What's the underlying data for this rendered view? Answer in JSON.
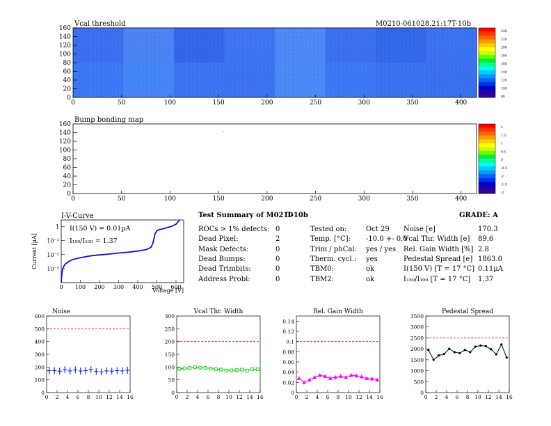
{
  "header": {
    "map1_title": "Vcal threshold",
    "module_id": "M0210-061028.21:17T-10b",
    "map2_title": "Bump bonding map"
  },
  "colors": {
    "blue_curve": "#1010e0",
    "red_ref": "#ff0000",
    "noise": "#0000ff",
    "vcal": "#00cc00",
    "relgain": "#ff00ff",
    "pedestal": "#000000"
  },
  "chart_data": [
    {
      "type": "heatmap",
      "name": "vcal-threshold-map",
      "title": "Vcal threshold",
      "xlim": [
        0,
        416
      ],
      "ylim": [
        0,
        160
      ],
      "xticks": [
        0,
        50,
        100,
        150,
        200,
        250,
        300,
        350,
        400
      ],
      "yticks": [
        0,
        20,
        40,
        60,
        80,
        100,
        120,
        140,
        160
      ],
      "roc_grid": {
        "cols": 8,
        "rows": 2
      },
      "roc_shades_top": [
        "#3a70f0",
        "#4a84f4",
        "#3266ea",
        "#3c74f2",
        "#4c88f6",
        "#3a70ee",
        "#3168e8",
        "#3a72f0"
      ],
      "roc_shades_bottom": [
        "#3a78f4",
        "#4486f6",
        "#3a74f0",
        "#3a72f0",
        "#4a8af6",
        "#3c78f2",
        "#3a72ee",
        "#3870ee"
      ],
      "palette_labels": [
        "240",
        "220",
        "200",
        "180",
        "160",
        "140",
        "120",
        "100",
        "80"
      ]
    },
    {
      "type": "heatmap",
      "name": "bump-bonding-map",
      "title": "Bump bonding map",
      "xlim": [
        0,
        416
      ],
      "ylim": [
        0,
        160
      ],
      "xticks": [
        0,
        50,
        100,
        150,
        200,
        250,
        300,
        350,
        400
      ],
      "yticks": [
        0,
        20,
        40,
        60,
        80,
        100,
        120,
        140,
        160
      ],
      "palette_labels": [
        "2",
        "1.5",
        "1",
        "0.5",
        "0",
        "-0.5",
        "-1",
        "-1.5",
        "-2"
      ]
    },
    {
      "type": "line",
      "name": "iv-curve",
      "title": "I-V-Curve",
      "xlabel": "Voltage [V]",
      "ylabel": "Current [µA]",
      "xlim": [
        0,
        640
      ],
      "ylim_log": [
        0.0001,
        3
      ],
      "xticks": [
        0,
        100,
        200,
        300,
        400,
        500,
        600
      ],
      "yticks": [
        {
          "value": 1,
          "label": "1"
        },
        {
          "value": 0.1,
          "label": "10⁻¹"
        },
        {
          "value": 0.01,
          "label": "10⁻²"
        },
        {
          "value": 0.001,
          "label": "10⁻³"
        }
      ],
      "annotations": [
        "I(150 V) = 0.01µA",
        "I₁₅₀/I₁₀₀ = 1.37"
      ],
      "x": [
        0,
        2,
        5,
        10,
        20,
        40,
        60,
        100,
        150,
        200,
        250,
        300,
        350,
        400,
        420,
        440,
        450,
        460,
        470,
        480,
        490,
        500,
        510,
        520,
        530,
        540,
        560,
        580,
        600,
        610,
        620
      ],
      "y": [
        0.0001,
        0.00025,
        0.0006,
        0.0012,
        0.002,
        0.0032,
        0.0045,
        0.006,
        0.008,
        0.0095,
        0.011,
        0.013,
        0.015,
        0.018,
        0.02,
        0.022,
        0.025,
        0.028,
        0.035,
        0.07,
        0.3,
        0.5,
        0.6,
        0.65,
        0.7,
        0.75,
        0.9,
        1.1,
        1.5,
        2.2,
        3
      ]
    },
    {
      "type": "scatter",
      "name": "noise-plot",
      "title": "Noise",
      "xlim": [
        0,
        16
      ],
      "ylim": [
        0,
        600
      ],
      "xticks": [
        0,
        2,
        4,
        6,
        8,
        10,
        12,
        14,
        16
      ],
      "yticks": [
        0,
        100,
        200,
        300,
        400,
        500,
        600
      ],
      "ref_line": 500,
      "x": [
        0,
        1,
        2,
        3,
        4,
        5,
        6,
        7,
        8,
        9,
        10,
        11,
        12,
        13,
        14,
        15
      ],
      "y": [
        171,
        172,
        168,
        179,
        170,
        178,
        169,
        172,
        180,
        165,
        162,
        170,
        168,
        172,
        170,
        175
      ]
    },
    {
      "type": "line",
      "name": "vcal-width-plot",
      "title": "Vcal Thr. Width",
      "xlim": [
        0,
        16
      ],
      "ylim": [
        0,
        300
      ],
      "xticks": [
        0,
        2,
        4,
        6,
        8,
        10,
        12,
        14,
        16
      ],
      "yticks": [
        0,
        50,
        100,
        150,
        200,
        250,
        300
      ],
      "ref_line": 200,
      "x": [
        0,
        1,
        2,
        3,
        4,
        5,
        6,
        7,
        8,
        9,
        10,
        11,
        12,
        13,
        14,
        15
      ],
      "y": [
        93,
        95,
        96,
        100,
        98,
        97,
        94,
        92,
        90,
        86,
        87,
        88,
        90,
        85,
        92,
        91
      ]
    },
    {
      "type": "line",
      "name": "relgain-plot",
      "title": "Rel. Gain Width",
      "xlim": [
        0,
        16
      ],
      "ylim": [
        0,
        0.15
      ],
      "xticks": [
        0,
        2,
        4,
        6,
        8,
        10,
        12,
        14,
        16
      ],
      "yticks": [
        0,
        0.02,
        0.04,
        0.06,
        0.08,
        0.1,
        0.12,
        0.14
      ],
      "ref_line": 0.1,
      "x": [
        0,
        1,
        2,
        3,
        4,
        5,
        6,
        7,
        8,
        9,
        10,
        11,
        12,
        13,
        14,
        15
      ],
      "y": [
        0.028,
        0.02,
        0.025,
        0.03,
        0.034,
        0.032,
        0.028,
        0.03,
        0.032,
        0.03,
        0.034,
        0.033,
        0.031,
        0.028,
        0.027,
        0.025
      ]
    },
    {
      "type": "line",
      "name": "pedestal-plot",
      "title": "Pedestal Spread",
      "xlim": [
        0,
        16
      ],
      "ylim": [
        0,
        3500
      ],
      "xticks": [
        0,
        2,
        4,
        6,
        8,
        10,
        12,
        14,
        16
      ],
      "yticks": [
        0,
        500,
        1000,
        1500,
        2000,
        2500,
        3000,
        3500
      ],
      "ref_line": 2500,
      "x": [
        0,
        1,
        2,
        3,
        4,
        5,
        6,
        7,
        8,
        9,
        10,
        11,
        12,
        13,
        14,
        15
      ],
      "y": [
        1950,
        1500,
        1700,
        1760,
        2000,
        1850,
        1800,
        1950,
        1850,
        2100,
        2150,
        2120,
        1980,
        1750,
        2200,
        1600
      ]
    }
  ],
  "summary": {
    "title": "Test Summary of M0210",
    "config": "T-10b",
    "grade": "GRADE:  A",
    "defects": [
      {
        "label": "ROCs > 1% defects:",
        "value": "0"
      },
      {
        "label": "Dead Pixel:",
        "value": "2"
      },
      {
        "label": "Mask Defects:",
        "value": "0"
      },
      {
        "label": "Dead Bumps:",
        "value": "0"
      },
      {
        "label": "Dead Trimbits:",
        "value": "0"
      },
      {
        "label": "Address Probl:",
        "value": "0"
      }
    ],
    "tests": [
      {
        "label": "Tested on:",
        "value": "Oct 29"
      },
      {
        "label": "Temp. [°C]:",
        "value": "-10.0 +- 0.0"
      },
      {
        "label": "Trim / phCal:",
        "value": "yes / yes"
      },
      {
        "label": "Therm. cycl.:",
        "value": "yes"
      },
      {
        "label": "TBM0:",
        "value": "ok"
      },
      {
        "label": "TBM2:",
        "value": "ok"
      }
    ],
    "params": [
      {
        "label": "Noise [e]",
        "value": "170.3"
      },
      {
        "label": "Vcal Thr. Width [e]",
        "value": "89.6"
      },
      {
        "label": "Rel. Gain Width [%]",
        "value": "2.8"
      },
      {
        "label": "Pedestal Spread [e]",
        "value": "1863.0"
      },
      {
        "label": "I(150 V) [T = 17 °C]",
        "value": "0.11µA"
      },
      {
        "label": "I₁₅₀/I₁₀₀   [T = 17 °C]",
        "value": "1.37"
      }
    ]
  }
}
